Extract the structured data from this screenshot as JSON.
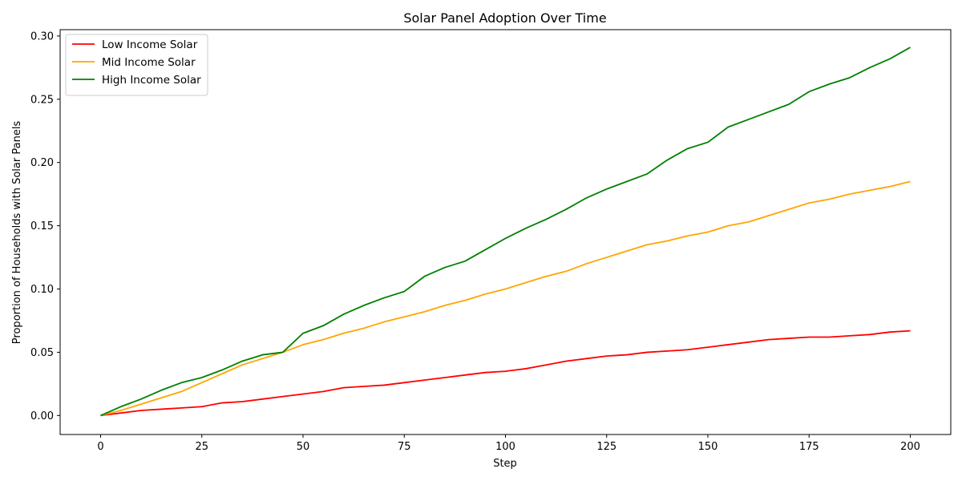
{
  "chart_data": {
    "type": "line",
    "title": "Solar Panel Adoption Over Time",
    "xlabel": "Step",
    "ylabel": "Proportion of Households with Solar Panels",
    "xlim": [
      -10,
      210
    ],
    "ylim": [
      -0.015,
      0.305
    ],
    "xticks": [
      0,
      25,
      50,
      75,
      100,
      125,
      150,
      175,
      200
    ],
    "xtick_labels": [
      "0",
      "25",
      "50",
      "75",
      "100",
      "125",
      "150",
      "175",
      "200"
    ],
    "yticks": [
      0.0,
      0.05,
      0.1,
      0.15,
      0.2,
      0.25,
      0.3
    ],
    "ytick_labels": [
      "0.00",
      "0.05",
      "0.10",
      "0.15",
      "0.20",
      "0.25",
      "0.30"
    ],
    "grid": false,
    "legend_position": "top-left",
    "series": [
      {
        "name": "Low Income Solar",
        "color": "#ff0000",
        "x": [
          0,
          5,
          10,
          15,
          20,
          25,
          30,
          35,
          40,
          45,
          50,
          55,
          60,
          65,
          70,
          75,
          80,
          85,
          90,
          95,
          100,
          105,
          110,
          115,
          120,
          125,
          130,
          135,
          140,
          145,
          150,
          155,
          160,
          165,
          170,
          175,
          180,
          185,
          190,
          195,
          200
        ],
        "values": [
          0.0,
          0.002,
          0.004,
          0.005,
          0.006,
          0.007,
          0.01,
          0.011,
          0.013,
          0.015,
          0.017,
          0.019,
          0.022,
          0.023,
          0.024,
          0.026,
          0.028,
          0.03,
          0.032,
          0.034,
          0.035,
          0.037,
          0.04,
          0.043,
          0.045,
          0.047,
          0.048,
          0.05,
          0.051,
          0.052,
          0.054,
          0.056,
          0.058,
          0.06,
          0.061,
          0.062,
          0.062,
          0.063,
          0.064,
          0.066,
          0.067
        ]
      },
      {
        "name": "Mid Income Solar",
        "color": "#ffa500",
        "x": [
          0,
          5,
          10,
          15,
          20,
          25,
          30,
          35,
          40,
          45,
          50,
          55,
          60,
          65,
          70,
          75,
          80,
          85,
          90,
          95,
          100,
          105,
          110,
          115,
          120,
          125,
          130,
          135,
          140,
          145,
          150,
          155,
          160,
          165,
          170,
          175,
          180,
          185,
          190,
          195,
          200
        ],
        "values": [
          0.0,
          0.004,
          0.009,
          0.014,
          0.019,
          0.026,
          0.033,
          0.04,
          0.045,
          0.05,
          0.056,
          0.06,
          0.065,
          0.069,
          0.074,
          0.078,
          0.082,
          0.087,
          0.091,
          0.096,
          0.1,
          0.105,
          0.11,
          0.114,
          0.12,
          0.125,
          0.13,
          0.135,
          0.138,
          0.142,
          0.145,
          0.15,
          0.153,
          0.158,
          0.163,
          0.168,
          0.171,
          0.175,
          0.178,
          0.181,
          0.185
        ]
      },
      {
        "name": "High Income Solar",
        "color": "#008000",
        "x": [
          0,
          5,
          10,
          15,
          20,
          25,
          30,
          35,
          40,
          45,
          50,
          55,
          60,
          65,
          70,
          75,
          80,
          85,
          90,
          95,
          100,
          105,
          110,
          115,
          120,
          125,
          130,
          135,
          140,
          145,
          150,
          155,
          160,
          165,
          170,
          175,
          180,
          185,
          190,
          195,
          200
        ],
        "values": [
          0.0,
          0.007,
          0.013,
          0.02,
          0.026,
          0.03,
          0.036,
          0.043,
          0.048,
          0.05,
          0.065,
          0.071,
          0.08,
          0.087,
          0.093,
          0.098,
          0.11,
          0.117,
          0.122,
          0.131,
          0.14,
          0.148,
          0.155,
          0.163,
          0.172,
          0.179,
          0.185,
          0.191,
          0.202,
          0.211,
          0.216,
          0.228,
          0.234,
          0.24,
          0.246,
          0.256,
          0.262,
          0.267,
          0.275,
          0.282,
          0.291
        ]
      }
    ]
  }
}
